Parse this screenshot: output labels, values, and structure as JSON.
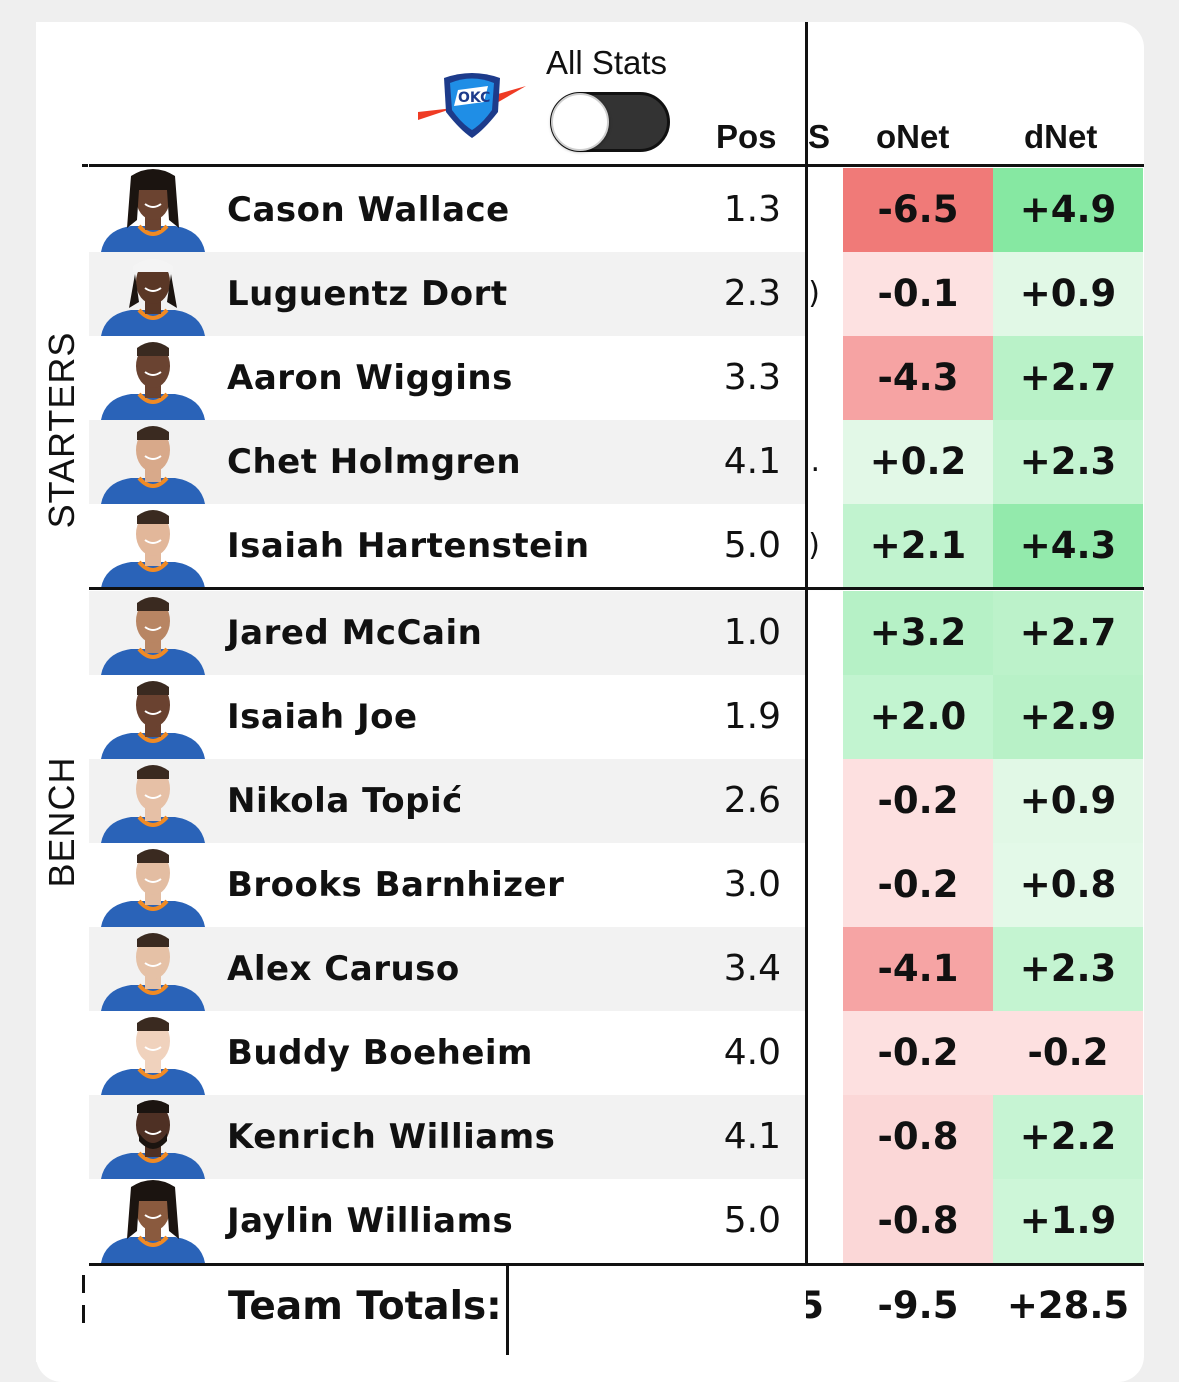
{
  "header": {
    "toggle_label": "All Stats",
    "toggle_on": false,
    "columns": {
      "pos": "Pos",
      "hidden": "S",
      "onet": "oNet",
      "dnet": "dNet"
    }
  },
  "groups": {
    "starters": "STARTERS",
    "bench": "BENCH"
  },
  "players": [
    {
      "name": "Cason Wallace",
      "pos": "1.3",
      "hidden": "",
      "onet": "-6.5",
      "dnet": "+4.9",
      "onet_color": "#f07a78",
      "dnet_color": "#86e8a2"
    },
    {
      "name": "Luguentz Dort",
      "pos": "2.3",
      "hidden": ")",
      "onet": "-0.1",
      "dnet": "+0.9",
      "onet_color": "#fde1e1",
      "dnet_color": "#e1f8e6"
    },
    {
      "name": "Aaron Wiggins",
      "pos": "3.3",
      "hidden": "",
      "onet": "-4.3",
      "dnet": "+2.7",
      "onet_color": "#f6a3a3",
      "dnet_color": "#b9f2c8"
    },
    {
      "name": "Chet Holmgren",
      "pos": "4.1",
      "hidden": ".",
      "onet": "+0.2",
      "dnet": "+2.3",
      "onet_color": "#e2f8e7",
      "dnet_color": "#c4f4d1"
    },
    {
      "name": "Isaiah Hartenstein",
      "pos": "5.0",
      "hidden": ")",
      "onet": "+2.1",
      "dnet": "+4.3",
      "onet_color": "#c1f3cf",
      "dnet_color": "#93eaac"
    },
    {
      "name": "Jared McCain",
      "pos": "1.0",
      "hidden": "",
      "onet": "+3.2",
      "dnet": "+2.7",
      "onet_color": "#b6f1c6",
      "dnet_color": "#bcf2ca"
    },
    {
      "name": "Isaiah Joe",
      "pos": "1.9",
      "hidden": "",
      "onet": "+2.0",
      "dnet": "+2.9",
      "onet_color": "#c2f4d0",
      "dnet_color": "#b8f1c7"
    },
    {
      "name": "Nikola Topić",
      "pos": "2.6",
      "hidden": "",
      "onet": "-0.2",
      "dnet": "+0.9",
      "onet_color": "#fde0e0",
      "dnet_color": "#e1f8e6"
    },
    {
      "name": "Brooks Barnhizer",
      "pos": "3.0",
      "hidden": "",
      "onet": "-0.2",
      "dnet": "+0.8",
      "onet_color": "#fde0e0",
      "dnet_color": "#e3f9e8"
    },
    {
      "name": "Alex Caruso",
      "pos": "3.4",
      "hidden": "",
      "onet": "-4.1",
      "dnet": "+2.3",
      "onet_color": "#f6a4a4",
      "dnet_color": "#c4f4d1"
    },
    {
      "name": "Buddy Boeheim",
      "pos": "4.0",
      "hidden": "",
      "onet": "-0.2",
      "dnet": "-0.2",
      "onet_color": "#fde0e0",
      "dnet_color": "#fde0e0"
    },
    {
      "name": "Kenrich Williams",
      "pos": "4.1",
      "hidden": "",
      "onet": "-0.8",
      "dnet": "+2.2",
      "onet_color": "#fbd7d7",
      "dnet_color": "#c6f4d3"
    },
    {
      "name": "Jaylin Williams",
      "pos": "5.0",
      "hidden": "",
      "onet": "-0.8",
      "dnet": "+1.9",
      "onet_color": "#fbd7d7",
      "dnet_color": "#cdf6d8"
    }
  ],
  "totals": {
    "label": "Team Totals:",
    "hidden": "5",
    "onet": "-9.5",
    "dnet": "+28.5"
  },
  "colors": {
    "row_alt": "#f2f2f2",
    "row_base": "#ffffff",
    "jersey": "#2a63b8",
    "jersey_trim": "#f08a24"
  }
}
